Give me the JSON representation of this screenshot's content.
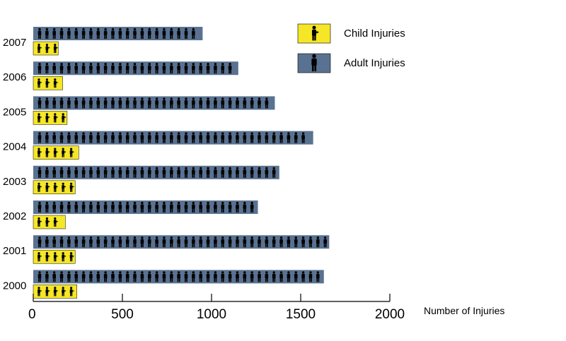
{
  "chart_data": {
    "type": "bar",
    "orientation": "horizontal",
    "title": "",
    "xlabel": "Number of Injuries",
    "ylabel": "",
    "xlim": [
      0,
      2000
    ],
    "xticks": [
      "0",
      "500",
      "1000",
      "1500",
      "2000"
    ],
    "categories": [
      "2007",
      "2006",
      "2005",
      "2004",
      "2003",
      "2002",
      "2001",
      "2000"
    ],
    "series": [
      {
        "name": "Adult Injuries",
        "color": "#5a7291",
        "icon": "adult-person-icon",
        "values": [
          950,
          1150,
          1355,
          1570,
          1380,
          1260,
          1660,
          1630
        ]
      },
      {
        "name": "Child Injuries",
        "color": "#f5e627",
        "icon": "child-person-icon",
        "values": [
          140,
          165,
          190,
          255,
          235,
          180,
          235,
          245
        ]
      }
    ],
    "legend": {
      "position": "top-right",
      "items": [
        {
          "label": "Child Injuries",
          "color": "#f5e627"
        },
        {
          "label": "Adult Injuries",
          "color": "#5a7291"
        }
      ]
    },
    "grid": false
  }
}
